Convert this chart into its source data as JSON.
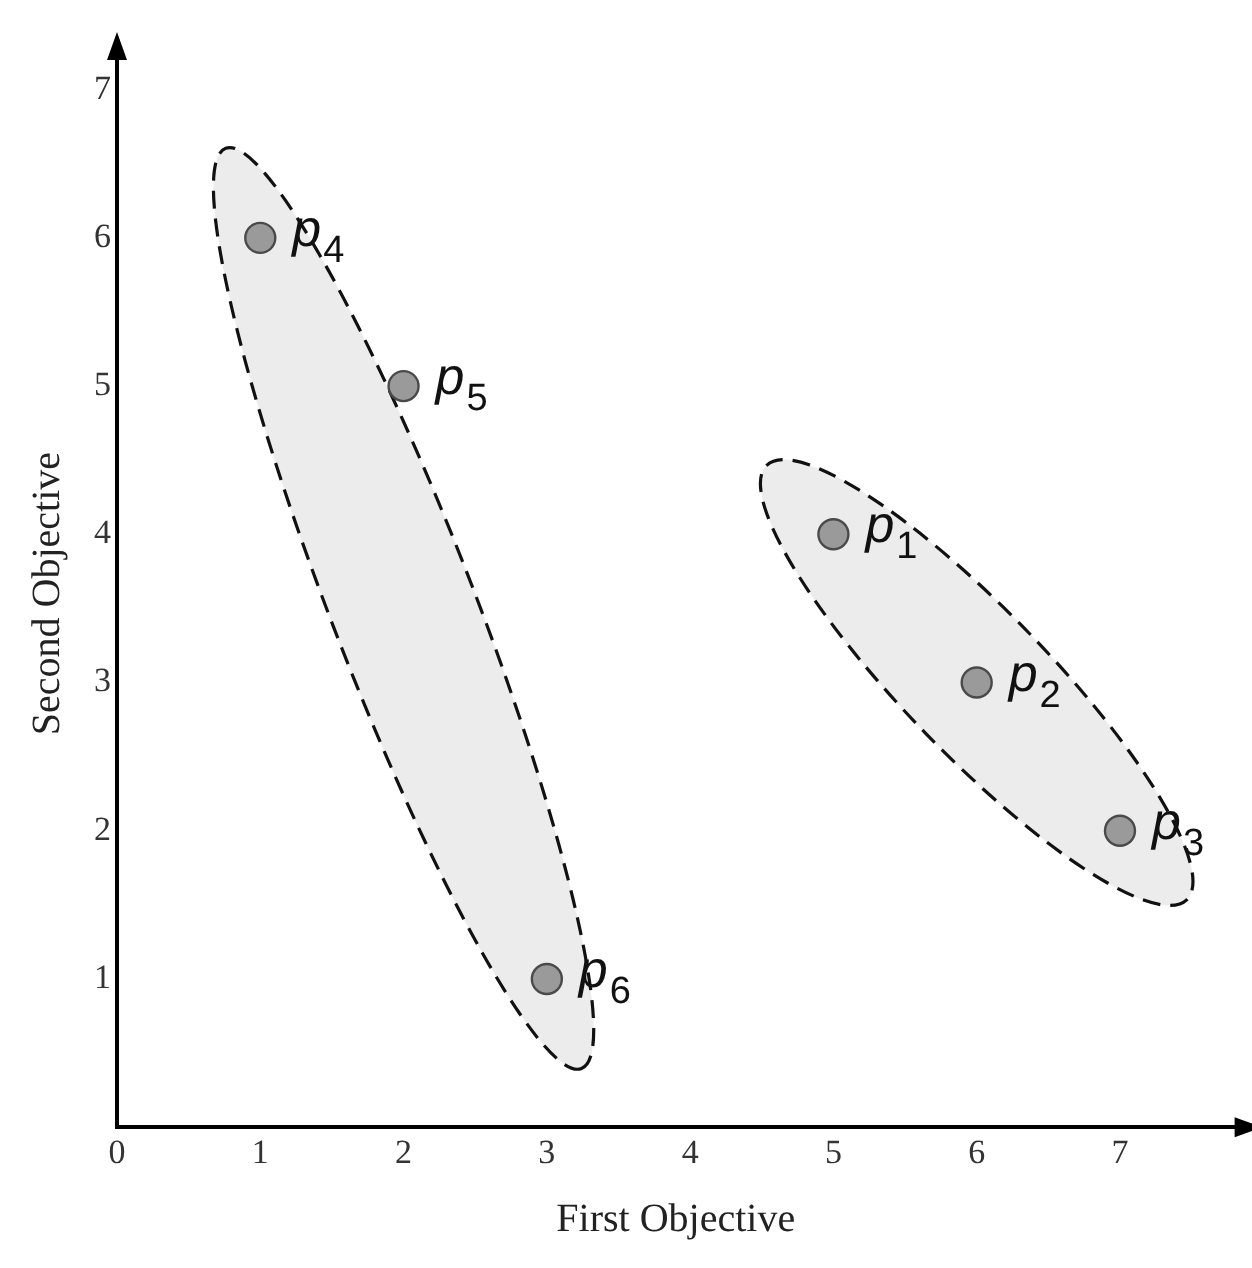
{
  "chart_data": {
    "type": "scatter",
    "xlabel": "First Objective",
    "ylabel": "Second Objective",
    "xlim": [
      0,
      7.8
    ],
    "ylim": [
      0,
      7.2
    ],
    "xticks": [
      0,
      1,
      2,
      3,
      4,
      5,
      6,
      7
    ],
    "yticks": [
      1,
      2,
      3,
      4,
      5,
      6,
      7
    ],
    "marker": "circle",
    "grid": false,
    "legend": false,
    "series": [
      {
        "color": "#9a9a9a",
        "x": [
          5,
          6,
          7
        ],
        "values": [
          4,
          3,
          2
        ]
      },
      {
        "color": "#9a9a9a",
        "x": [
          1,
          2,
          3
        ],
        "values": [
          6,
          5,
          1
        ]
      }
    ],
    "annotations": [
      {
        "text": "p$_{1}$",
        "x": 5,
        "y": 4
      },
      {
        "text": "p$_{2}$",
        "x": 6,
        "y": 3
      },
      {
        "text": "p$_{3}$",
        "x": 7,
        "y": 2
      },
      {
        "text": "p$_{4}$",
        "x": 1,
        "y": 6
      },
      {
        "text": "p$_{5}$",
        "x": 2,
        "y": 5
      },
      {
        "text": "p$_{6}$",
        "x": 3,
        "y": 1
      }
    ]
  }
}
